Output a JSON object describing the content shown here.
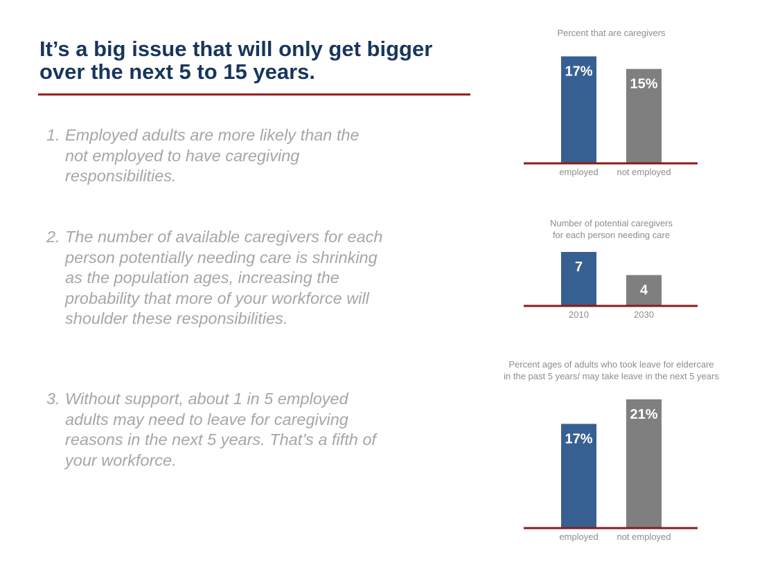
{
  "headline": {
    "line1": "It’s a big issue that will only get bigger",
    "line2": "over the next 5 to 15 years."
  },
  "points": [
    {
      "num": "1.",
      "text": "Employed adults are more likely than the not employed to have caregiving responsibilities."
    },
    {
      "num": "2.",
      "text": "The number of available caregivers for each person potentially needing care is shrinking as the population ages, increasing the probability that more of your workforce will shoulder these responsibilities."
    },
    {
      "num": "3.",
      "text": "Without support, about 1 in 5 employed adults may need to leave for caregiving reasons in the next 5 years. That’s a fifth of your workforce."
    }
  ],
  "colors": {
    "primary_bar": "#376092",
    "secondary_bar": "#7f7f7f",
    "baseline": "#8b1a1a",
    "headline": "#17365d"
  },
  "chart_data": [
    {
      "type": "bar",
      "title": [
        "Percent that are caregivers"
      ],
      "categories": [
        "employed",
        "not employed"
      ],
      "values": [
        17,
        15
      ],
      "labels": [
        "17%",
        "15%"
      ],
      "ylim": [
        0,
        17.6
      ]
    },
    {
      "type": "bar",
      "title": [
        "Number of potential caregivers",
        "for each person needing care"
      ],
      "categories": [
        "2010",
        "2030"
      ],
      "values": [
        7,
        4
      ],
      "labels": [
        "7",
        "4"
      ],
      "ylim": [
        0,
        7
      ]
    },
    {
      "type": "bar",
      "title": [
        "Percent ages of adults who took leave for eldercare",
        "in the past 5 years/ may take leave in the next 5 years"
      ],
      "categories": [
        "employed",
        "not employed"
      ],
      "values": [
        17,
        21
      ],
      "labels": [
        "17%",
        "21%"
      ],
      "ylim": [
        0,
        21
      ]
    }
  ]
}
